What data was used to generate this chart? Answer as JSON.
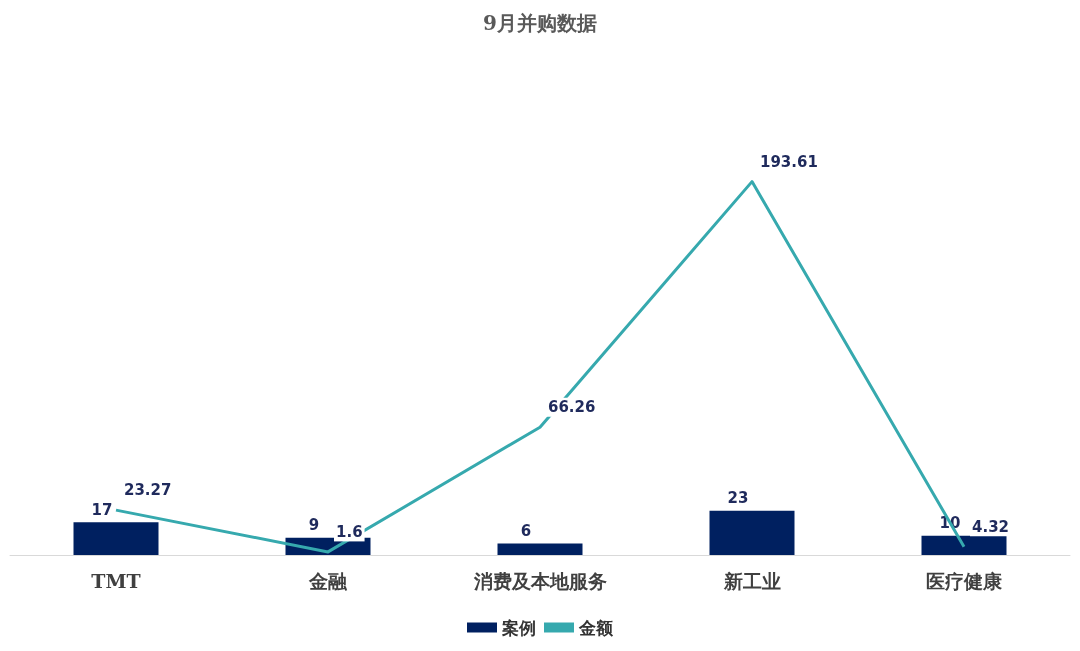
{
  "chart_data": {
    "type": "bar",
    "title": "9月并购数据",
    "categories": [
      "TMT",
      "金融",
      "消费及本地服务",
      "新工业",
      "医疗健康"
    ],
    "series": [
      {
        "name": "案例",
        "color": "#002060",
        "values": [
          17,
          9,
          6,
          23,
          10
        ]
      },
      {
        "name": "金额",
        "type": "line",
        "color": "#36a9ae",
        "values": [
          23.27,
          1.6,
          66.26,
          193.61,
          4.32
        ]
      }
    ],
    "data_labels": true,
    "legend": "bottom",
    "marker": "none",
    "grid": false
  }
}
